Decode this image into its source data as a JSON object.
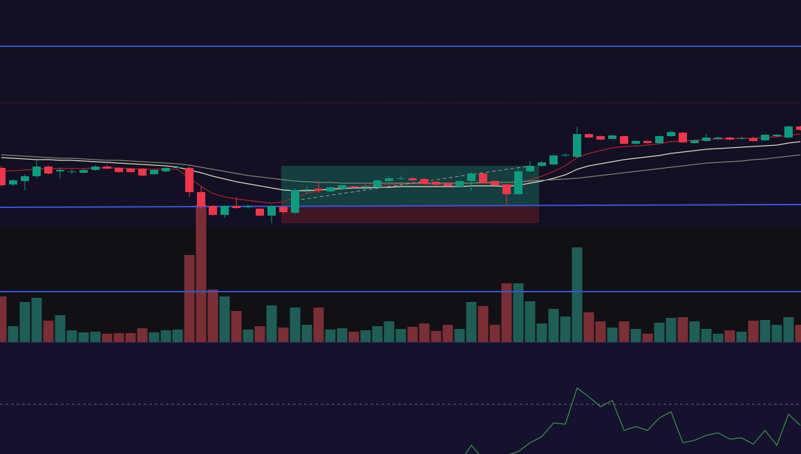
{
  "chart_data": {
    "type": "candlestick",
    "ylim": [
      0,
      495
    ],
    "up_color": "#0c9b7e",
    "down_color": "#f0364a",
    "volume_up_color": "#1f5e57",
    "volume_down_color": "#7a2e35",
    "open": [
      252,
      228,
      233,
      240,
      254,
      247,
      246,
      245,
      249,
      254,
      252,
      251,
      251,
      243,
      247,
      252,
      252,
      217,
      197,
      184,
      197,
      195,
      193,
      183,
      196,
      187,
      220,
      222,
      218,
      222,
      225,
      224,
      224,
      233,
      236,
      237,
      236,
      232,
      230,
      225,
      233,
      244,
      233,
      228,
      214,
      247,
      255,
      257,
      270,
      268,
      301,
      298,
      294,
      298,
      287,
      291,
      288,
      298,
      303,
      288,
      291,
      294,
      296,
      294,
      295,
      292,
      298,
      296,
      312
    ],
    "high": [
      255,
      236,
      242,
      263,
      256,
      253,
      250,
      251,
      256,
      256,
      253,
      252,
      252,
      250,
      253,
      255,
      254,
      225,
      198,
      198,
      209,
      199,
      194,
      198,
      197,
      222,
      225,
      232,
      225,
      228,
      226,
      228,
      235,
      239,
      241,
      239,
      237,
      233,
      231,
      234,
      246,
      245,
      234,
      229,
      252,
      262,
      262,
      271,
      273,
      311,
      302,
      299,
      300,
      299,
      292,
      292,
      299,
      306,
      304,
      293,
      301,
      297,
      297,
      297,
      297,
      301,
      301,
      313,
      313
    ],
    "low": [
      225,
      226,
      220,
      238,
      242,
      237,
      243,
      244,
      248,
      250,
      245,
      245,
      240,
      242,
      246,
      251,
      210,
      193,
      183,
      180,
      193,
      193,
      182,
      172,
      186,
      186,
      215,
      216,
      217,
      221,
      222,
      223,
      223,
      232,
      235,
      233,
      228,
      227,
      225,
      224,
      219,
      230,
      226,
      198,
      213,
      246,
      254,
      256,
      268,
      267,
      295,
      292,
      293,
      286,
      286,
      287,
      287,
      297,
      288,
      287,
      290,
      293,
      292,
      293,
      290,
      291,
      297,
      295,
      306
    ],
    "close": [
      227,
      234,
      240,
      254,
      244,
      249,
      247,
      249,
      254,
      251,
      246,
      246,
      241,
      249,
      252,
      253,
      217,
      196,
      184,
      197,
      194,
      196,
      183,
      197,
      188,
      220,
      221,
      219,
      224,
      227,
      224,
      225,
      234,
      237,
      237,
      234,
      229,
      228,
      226,
      233,
      244,
      231,
      227,
      214,
      247,
      255,
      260,
      270,
      271,
      301,
      296,
      293,
      299,
      287,
      291,
      288,
      298,
      304,
      289,
      292,
      296,
      296,
      293,
      295,
      291,
      300,
      300,
      312,
      307
    ],
    "volume": [
      66,
      23,
      58,
      64,
      31,
      39,
      17,
      14,
      15,
      12,
      13,
      13,
      20,
      14,
      17,
      18,
      126,
      199,
      76,
      66,
      45,
      18,
      23,
      53,
      21,
      50,
      25,
      50,
      18,
      20,
      15,
      17,
      23,
      30,
      19,
      22,
      27,
      16,
      25,
      19,
      58,
      52,
      25,
      85,
      85,
      59,
      27,
      48,
      37,
      137,
      43,
      30,
      21,
      30,
      19,
      12,
      28,
      35,
      36,
      30,
      19,
      12,
      17,
      15,
      31,
      32,
      25,
      36,
      25
    ],
    "series": [
      {
        "color": "#b2232f",
        "values": [
          247,
          248,
          249,
          250,
          251,
          251,
          251,
          251,
          252,
          252,
          252,
          251,
          250,
          250,
          250,
          250,
          237,
          225,
          215,
          210,
          207,
          205,
          203,
          201,
          203,
          210,
          215,
          219,
          222,
          224,
          225,
          226,
          227,
          228,
          229,
          229,
          229,
          228,
          228,
          229,
          230,
          230,
          229,
          227,
          230,
          235,
          240,
          247,
          255,
          267,
          273,
          277,
          281,
          283,
          284,
          285,
          287,
          290,
          291,
          292,
          293,
          294,
          294,
          295,
          295,
          296,
          297,
          299,
          301
        ]
      },
      {
        "color": "#e6e0c6",
        "values": [
          267,
          266,
          265,
          264,
          264,
          263,
          263,
          262,
          261,
          260,
          259,
          258,
          257,
          256,
          255,
          253,
          249,
          245,
          240,
          236,
          232,
          229,
          226,
          223,
          220,
          219,
          219,
          220,
          221,
          222,
          223,
          223,
          224,
          224,
          225,
          225,
          225,
          225,
          225,
          225,
          226,
          226,
          226,
          225,
          227,
          230,
          233,
          237,
          242,
          250,
          255,
          258,
          261,
          264,
          266,
          268,
          270,
          273,
          275,
          277,
          279,
          280,
          281,
          282,
          283,
          284,
          285,
          288,
          290
        ]
      },
      {
        "color": "#7b8c78",
        "values": [
          271,
          270,
          269,
          268,
          267,
          266,
          266,
          265,
          264,
          263,
          263,
          262,
          261,
          260,
          259,
          258,
          256,
          253,
          250,
          247,
          244,
          241,
          239,
          237,
          235,
          233,
          232,
          231,
          231,
          230,
          230,
          230,
          230,
          230,
          230,
          230,
          230,
          230,
          230,
          230,
          230,
          231,
          231,
          231,
          232,
          233,
          234,
          235,
          236,
          237,
          239,
          241,
          243,
          245,
          247,
          249,
          251,
          253,
          255,
          257,
          259,
          260,
          261,
          262,
          264,
          265,
          267,
          269,
          271
        ]
      }
    ],
    "levels": [
      {
        "value": 428,
        "color": "#3458d6",
        "style": "solid"
      },
      {
        "value": 346,
        "color": "#b0323c",
        "style": "dotted"
      },
      {
        "value": 73,
        "color": "#3458d6",
        "style": "solid"
      }
    ],
    "trendlines": [
      {
        "from": 0,
        "to": 68,
        "values": [
          195,
          199
        ],
        "color": "#3458d6",
        "style": "solid"
      },
      {
        "from": 25,
        "to": 45,
        "values": [
          205,
          255
        ],
        "color": "#9aa7a0",
        "style": "dashed"
      }
    ],
    "zones": [
      {
        "from": 24,
        "to": 46,
        "top": 255,
        "bottom": 197,
        "color": "rgba(22,120,100,0.45)"
      },
      {
        "from": 24,
        "to": 46,
        "top": 197,
        "bottom": 172,
        "color": "rgba(120,30,40,0.45)"
      }
    ],
    "oscillator": {
      "ylim": [
        10,
        100
      ],
      "color": "#3f9a4a",
      "midline": 50,
      "values": [
        null,
        null,
        null,
        null,
        null,
        null,
        null,
        null,
        null,
        null,
        null,
        null,
        null,
        null,
        null,
        null,
        null,
        null,
        null,
        null,
        null,
        null,
        null,
        null,
        null,
        null,
        null,
        null,
        null,
        null,
        null,
        null,
        null,
        null,
        null,
        null,
        null,
        null,
        null,
        3,
        17,
        6,
        6,
        9,
        12,
        19,
        24,
        35,
        34,
        63,
        56,
        48,
        53,
        29,
        32,
        29,
        39,
        44,
        19,
        21,
        25,
        27,
        22,
        23,
        18,
        29,
        17,
        42,
        33
      ]
    }
  }
}
